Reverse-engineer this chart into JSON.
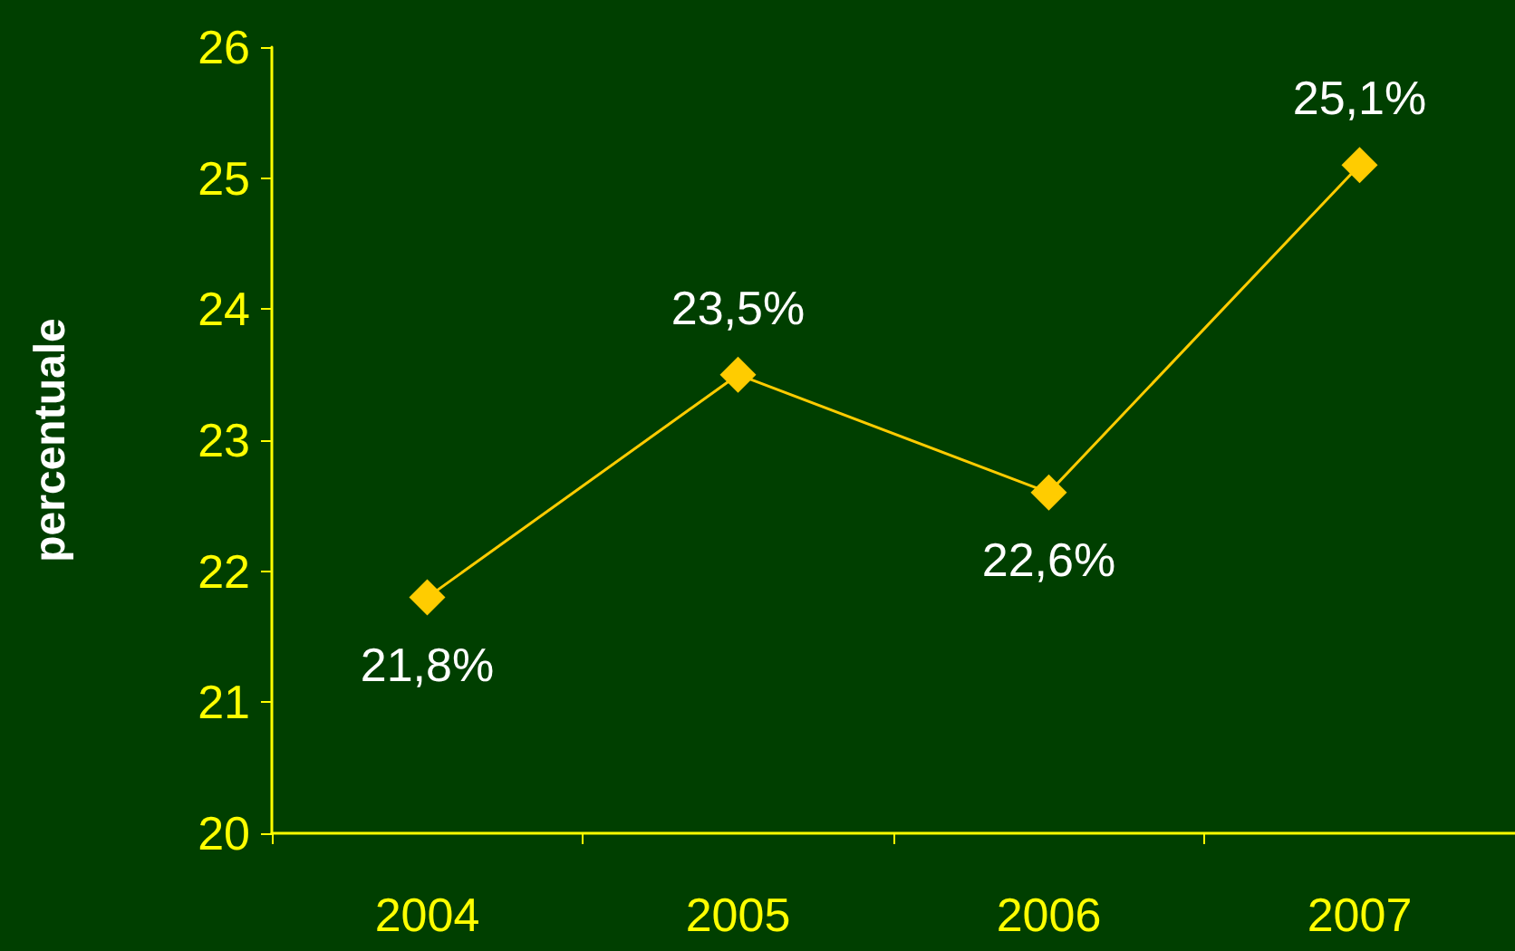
{
  "chart_data": {
    "type": "line",
    "ylabel": "percentuale",
    "categories": [
      "2004",
      "2005",
      "2006",
      "2007"
    ],
    "series": [
      {
        "color": "#ffcc00",
        "values": [
          21.8,
          23.5,
          22.6,
          25.1
        ],
        "value_labels": [
          "21,8%",
          "23,5%",
          "22,6%",
          "25,1%"
        ]
      }
    ],
    "ylim": [
      20,
      26
    ],
    "yticks": [
      20,
      21,
      22,
      23,
      24,
      25,
      26
    ],
    "grid": false,
    "marker": "diamond",
    "line_style": "solid"
  }
}
